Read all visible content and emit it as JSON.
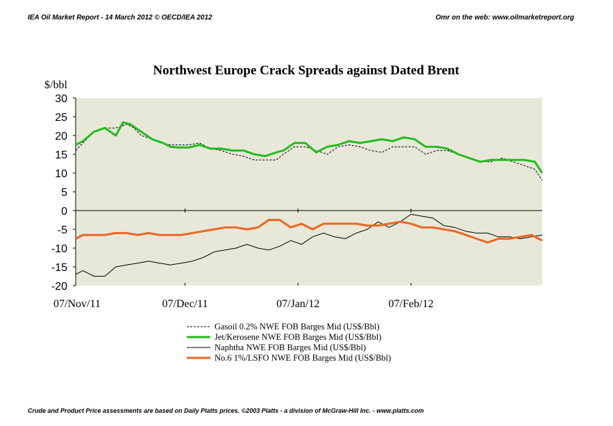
{
  "header": {
    "left": "IEA Oil Market Report - 14 March 2012     © OECD/IEA 2012",
    "right": "Omr on the web: www.oilmarketreport.org"
  },
  "footer": "Crude and Product Price assessments are based on Daily Platts prices. ©2003 Platts - a division of McGraw-Hill Inc. - www.platts.com",
  "chart_data": {
    "type": "line",
    "title": "Northwest Europe Crack Spreads against Dated Brent",
    "ylabel": "$/bbl",
    "xlabel": "",
    "ylim": [
      -20,
      30
    ],
    "yticks": [
      30,
      25,
      20,
      15,
      10,
      5,
      0,
      -5,
      -10,
      -15,
      -20
    ],
    "xticks": [
      "07/Nov/11",
      "07/Dec/11",
      "07/Jan/12",
      "07/Feb/12"
    ],
    "xlim": [
      "07/Nov/11",
      "14/Mar/12"
    ],
    "grid": false,
    "background_color": "#e8e8d8",
    "legend_position": "bottom",
    "series": [
      {
        "name": "Gasoil 0.2% NWE FOB Barges  Mid (US$/Bbl)",
        "color": "#000000",
        "style": "dashed",
        "x": [
          "07/Nov/11",
          "09/Nov/11",
          "12/Nov/11",
          "15/Nov/11",
          "18/Nov/11",
          "21/Nov/11",
          "23/Nov/11",
          "25/Nov/11",
          "28/Nov/11",
          "01/Dec/11",
          "03/Dec/11",
          "05/Dec/11",
          "08/Dec/11",
          "11/Dec/11",
          "14/Dec/11",
          "17/Dec/11",
          "20/Dec/11",
          "23/Dec/11",
          "26/Dec/11",
          "29/Dec/11",
          "01/Jan/12",
          "03/Jan/12",
          "06/Jan/12",
          "09/Jan/12",
          "12/Jan/12",
          "15/Jan/12",
          "18/Jan/12",
          "21/Jan/12",
          "24/Jan/12",
          "27/Jan/12",
          "30/Jan/12",
          "02/Feb/12",
          "05/Feb/12",
          "08/Feb/12",
          "11/Feb/12",
          "14/Feb/12",
          "17/Feb/12",
          "20/Feb/12",
          "23/Feb/12",
          "26/Feb/12",
          "29/Feb/12",
          "03/Mar/12",
          "06/Mar/12",
          "09/Mar/12",
          "12/Mar/12",
          "14/Mar/12"
        ],
        "values": [
          16,
          18,
          21,
          22,
          22,
          23,
          22,
          20,
          19,
          18,
          17.5,
          17.5,
          17.5,
          18,
          16.5,
          16,
          15,
          14.5,
          13.5,
          13.5,
          13.5,
          15,
          17,
          17,
          16,
          15,
          17,
          17.5,
          17,
          16,
          15.5,
          17,
          17,
          17,
          15,
          16,
          16,
          15,
          14,
          13,
          13,
          14,
          13,
          12,
          11,
          8
        ]
      },
      {
        "name": "Jet/Kerosene NWE FOB Barges  Mid (US$/Bbl)",
        "color": "#22bb22",
        "style": "solid",
        "x": [
          "07/Nov/11",
          "09/Nov/11",
          "12/Nov/11",
          "15/Nov/11",
          "18/Nov/11",
          "20/Nov/11",
          "22/Nov/11",
          "25/Nov/11",
          "28/Nov/11",
          "01/Dec/11",
          "03/Dec/11",
          "05/Dec/11",
          "08/Dec/11",
          "11/Dec/11",
          "14/Dec/11",
          "17/Dec/11",
          "20/Dec/11",
          "23/Dec/11",
          "26/Dec/11",
          "29/Dec/11",
          "01/Jan/12",
          "03/Jan/12",
          "06/Jan/12",
          "09/Jan/12",
          "12/Jan/12",
          "15/Jan/12",
          "18/Jan/12",
          "21/Jan/12",
          "24/Jan/12",
          "27/Jan/12",
          "30/Jan/12",
          "02/Feb/12",
          "05/Feb/12",
          "08/Feb/12",
          "11/Feb/12",
          "14/Feb/12",
          "17/Feb/12",
          "20/Feb/12",
          "23/Feb/12",
          "26/Feb/12",
          "29/Feb/12",
          "03/Mar/12",
          "06/Mar/12",
          "09/Mar/12",
          "12/Mar/12",
          "14/Mar/12"
        ],
        "values": [
          17.5,
          18.5,
          21,
          22,
          20,
          23.5,
          23,
          21,
          19,
          18,
          17,
          16.8,
          16.8,
          17.5,
          16.5,
          16.5,
          16,
          16,
          15,
          14.5,
          15.5,
          16,
          18,
          18,
          15.5,
          17,
          17.5,
          18.5,
          18,
          18.5,
          19,
          18.5,
          19.5,
          19,
          17,
          17,
          16.5,
          15,
          14,
          13,
          13.5,
          13.5,
          13.5,
          13.5,
          13,
          10
        ]
      },
      {
        "name": "Naphtha NWE FOB Barges  Mid (US$/Bbl)",
        "color": "#000000",
        "style": "thin",
        "x": [
          "07/Nov/11",
          "09/Nov/11",
          "12/Nov/11",
          "15/Nov/11",
          "18/Nov/11",
          "21/Nov/11",
          "24/Nov/11",
          "27/Nov/11",
          "30/Nov/11",
          "03/Dec/11",
          "06/Dec/11",
          "09/Dec/11",
          "12/Dec/11",
          "15/Dec/11",
          "18/Dec/11",
          "21/Dec/11",
          "24/Dec/11",
          "27/Dec/11",
          "30/Dec/11",
          "02/Jan/12",
          "05/Jan/12",
          "08/Jan/12",
          "11/Jan/12",
          "14/Jan/12",
          "17/Jan/12",
          "20/Jan/12",
          "23/Jan/12",
          "26/Jan/12",
          "29/Jan/12",
          "01/Feb/12",
          "04/Feb/12",
          "07/Feb/12",
          "10/Feb/12",
          "13/Feb/12",
          "16/Feb/12",
          "19/Feb/12",
          "22/Feb/12",
          "25/Feb/12",
          "28/Feb/12",
          "02/Mar/12",
          "05/Mar/12",
          "08/Mar/12",
          "11/Mar/12",
          "14/Mar/12"
        ],
        "values": [
          -17,
          -16,
          -17.5,
          -17.5,
          -15,
          -14.5,
          -14,
          -13.5,
          -14,
          -14.5,
          -14,
          -13.5,
          -12.5,
          -11,
          -10.5,
          -10,
          -9,
          -10,
          -10.5,
          -9.5,
          -8,
          -9,
          -7,
          -6,
          -7,
          -7.5,
          -6,
          -5,
          -3,
          -4.5,
          -3,
          -1,
          -1.5,
          -2,
          -4,
          -4.5,
          -5.5,
          -6,
          -6,
          -7,
          -7,
          -7.5,
          -7,
          -6.5
        ]
      },
      {
        "name": "No.6 1%/LSFO NWE FOB Barges  Mid (US$/Bbl)",
        "color": "#ee6622",
        "style": "solid",
        "x": [
          "07/Nov/11",
          "09/Nov/11",
          "12/Nov/11",
          "15/Nov/11",
          "18/Nov/11",
          "21/Nov/11",
          "24/Nov/11",
          "27/Nov/11",
          "30/Nov/11",
          "03/Dec/11",
          "06/Dec/11",
          "09/Dec/11",
          "12/Dec/11",
          "15/Dec/11",
          "18/Dec/11",
          "21/Dec/11",
          "24/Dec/11",
          "27/Dec/11",
          "30/Dec/11",
          "02/Jan/12",
          "05/Jan/12",
          "08/Jan/12",
          "11/Jan/12",
          "14/Jan/12",
          "17/Jan/12",
          "20/Jan/12",
          "23/Jan/12",
          "26/Jan/12",
          "29/Jan/12",
          "01/Feb/12",
          "04/Feb/12",
          "07/Feb/12",
          "10/Feb/12",
          "13/Feb/12",
          "16/Feb/12",
          "19/Feb/12",
          "22/Feb/12",
          "25/Feb/12",
          "28/Feb/12",
          "02/Mar/12",
          "05/Mar/12",
          "08/Mar/12",
          "11/Mar/12",
          "14/Mar/12"
        ],
        "values": [
          -7.5,
          -6.5,
          -6.5,
          -6.5,
          -6,
          -6,
          -6.5,
          -6,
          -6.5,
          -6.5,
          -6.5,
          -6,
          -5.5,
          -5,
          -4.5,
          -4.5,
          -5,
          -4.5,
          -2.5,
          -2.5,
          -4.5,
          -3.5,
          -5,
          -3.5,
          -3.5,
          -3.5,
          -3.5,
          -4,
          -4,
          -3.5,
          -3,
          -3.5,
          -4.5,
          -4.5,
          -5,
          -5.5,
          -6.5,
          -7.5,
          -8.5,
          -7.5,
          -7.5,
          -7,
          -6.5,
          -8
        ]
      }
    ]
  }
}
